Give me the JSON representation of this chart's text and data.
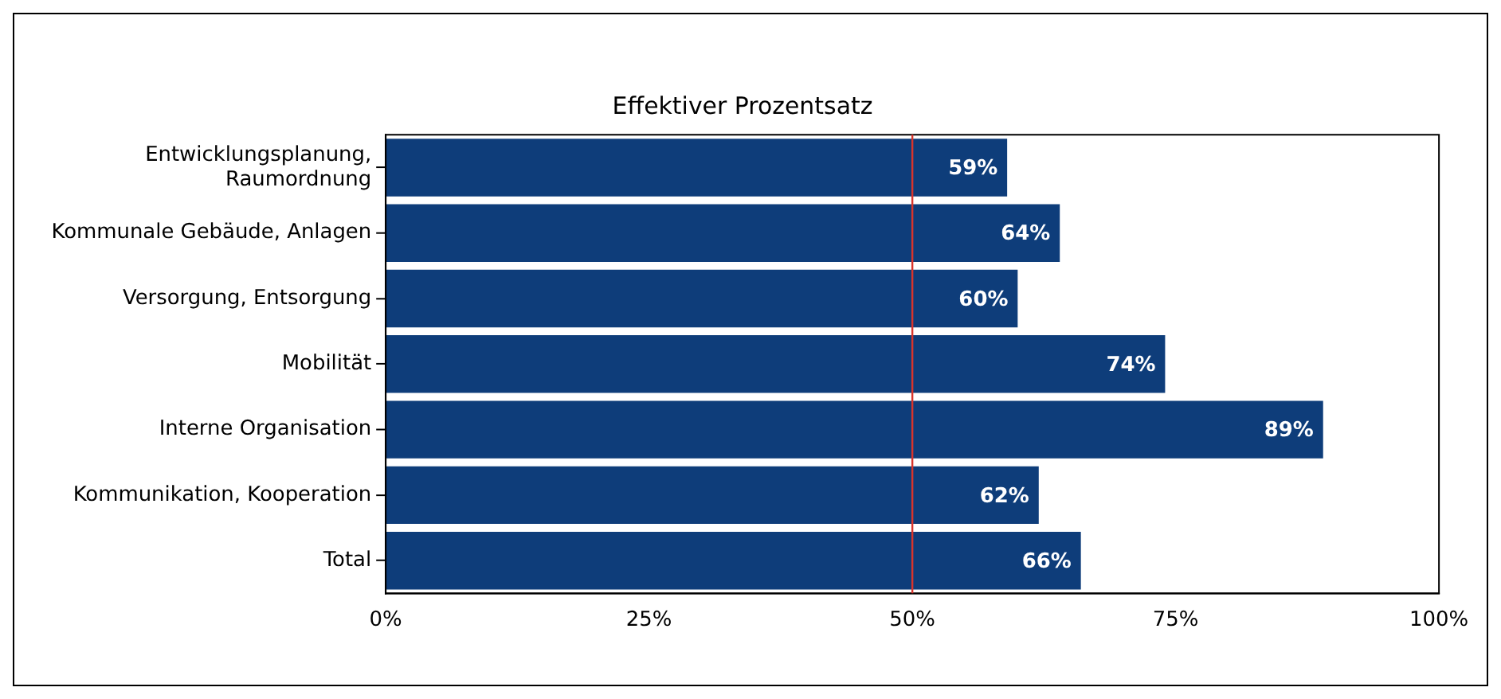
{
  "chart_data": {
    "type": "bar",
    "orientation": "horizontal",
    "title": "Effektiver Prozentsatz",
    "categories": [
      "Entwicklungsplanung, Raumordnung",
      "Kommunale Gebäude, Anlagen",
      "Versorgung, Entsorgung",
      "Mobilität",
      "Interne Organisation",
      "Kommunikation, Kooperation",
      "Total"
    ],
    "values": [
      59,
      64,
      60,
      74,
      89,
      62,
      66
    ],
    "value_labels": [
      "59%",
      "64%",
      "60%",
      "74%",
      "89%",
      "62%",
      "66%"
    ],
    "color": "#0e3d7a",
    "xlim": [
      0,
      100
    ],
    "xticks": [
      {
        "value": 0,
        "label": "0%"
      },
      {
        "value": 25,
        "label": "25%"
      },
      {
        "value": 50,
        "label": "50%"
      },
      {
        "value": 75,
        "label": "75%"
      },
      {
        "value": 100,
        "label": "100%"
      }
    ],
    "ref_lines": [
      {
        "axis": "x",
        "value": 50,
        "color": "#d9342b"
      }
    ],
    "grid": false,
    "legend": false
  }
}
